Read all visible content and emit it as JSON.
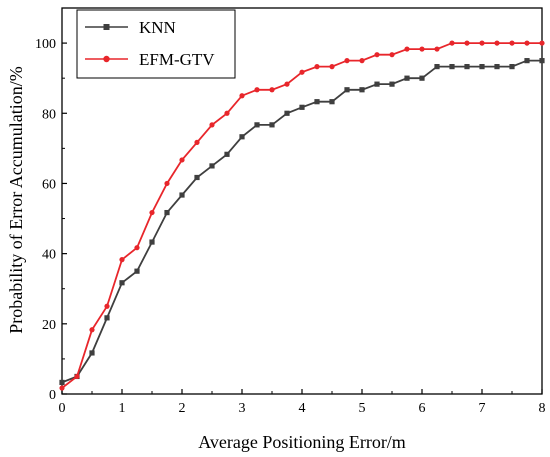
{
  "chart_data": {
    "type": "line",
    "xlabel": "Average Positioning Error/m",
    "ylabel": "Probability of Error Accumulation/%",
    "xlim": [
      0,
      8
    ],
    "ylim": [
      0,
      110
    ],
    "xticks": [
      0,
      1,
      2,
      3,
      4,
      5,
      6,
      7,
      8
    ],
    "yticks": [
      0,
      20,
      40,
      60,
      80,
      100
    ],
    "grid": false,
    "legend_position": "top-left",
    "series": [
      {
        "name": "KNN",
        "color": "#3f3f3f",
        "marker": "square",
        "x": [
          0,
          0.25,
          0.5,
          0.75,
          1.0,
          1.25,
          1.5,
          1.75,
          2.0,
          2.25,
          2.5,
          2.75,
          3.0,
          3.25,
          3.5,
          3.75,
          4.0,
          4.25,
          4.5,
          4.75,
          5.0,
          5.25,
          5.5,
          5.75,
          6.0,
          6.25,
          6.5,
          6.75,
          7.0,
          7.25,
          7.5,
          7.75,
          8.0
        ],
        "y": [
          3.3,
          5.0,
          11.7,
          21.7,
          31.7,
          35.0,
          43.3,
          51.7,
          56.7,
          61.7,
          65.0,
          68.3,
          73.3,
          76.7,
          76.7,
          80.0,
          81.7,
          83.3,
          83.3,
          86.7,
          86.7,
          88.3,
          88.3,
          90.0,
          90.0,
          93.3,
          93.3,
          93.3,
          93.3,
          93.3,
          93.3,
          95.0,
          95.0
        ]
      },
      {
        "name": "EFM-GTV",
        "color": "#e8262b",
        "marker": "circle",
        "x": [
          0,
          0.25,
          0.5,
          0.75,
          1.0,
          1.25,
          1.5,
          1.75,
          2.0,
          2.25,
          2.5,
          2.75,
          3.0,
          3.25,
          3.5,
          3.75,
          4.0,
          4.25,
          4.5,
          4.75,
          5.0,
          5.25,
          5.5,
          5.75,
          6.0,
          6.25,
          6.5,
          6.75,
          7.0,
          7.25,
          7.5,
          7.75,
          8.0
        ],
        "y": [
          1.7,
          5.0,
          18.3,
          25.0,
          38.3,
          41.7,
          51.7,
          60.0,
          66.7,
          71.7,
          76.7,
          80.0,
          85.0,
          86.7,
          86.7,
          88.3,
          91.7,
          93.3,
          93.3,
          95.0,
          95.0,
          96.7,
          96.7,
          98.3,
          98.3,
          98.3,
          100.0,
          100.0,
          100.0,
          100.0,
          100.0,
          100.0,
          100.0
        ]
      }
    ]
  }
}
